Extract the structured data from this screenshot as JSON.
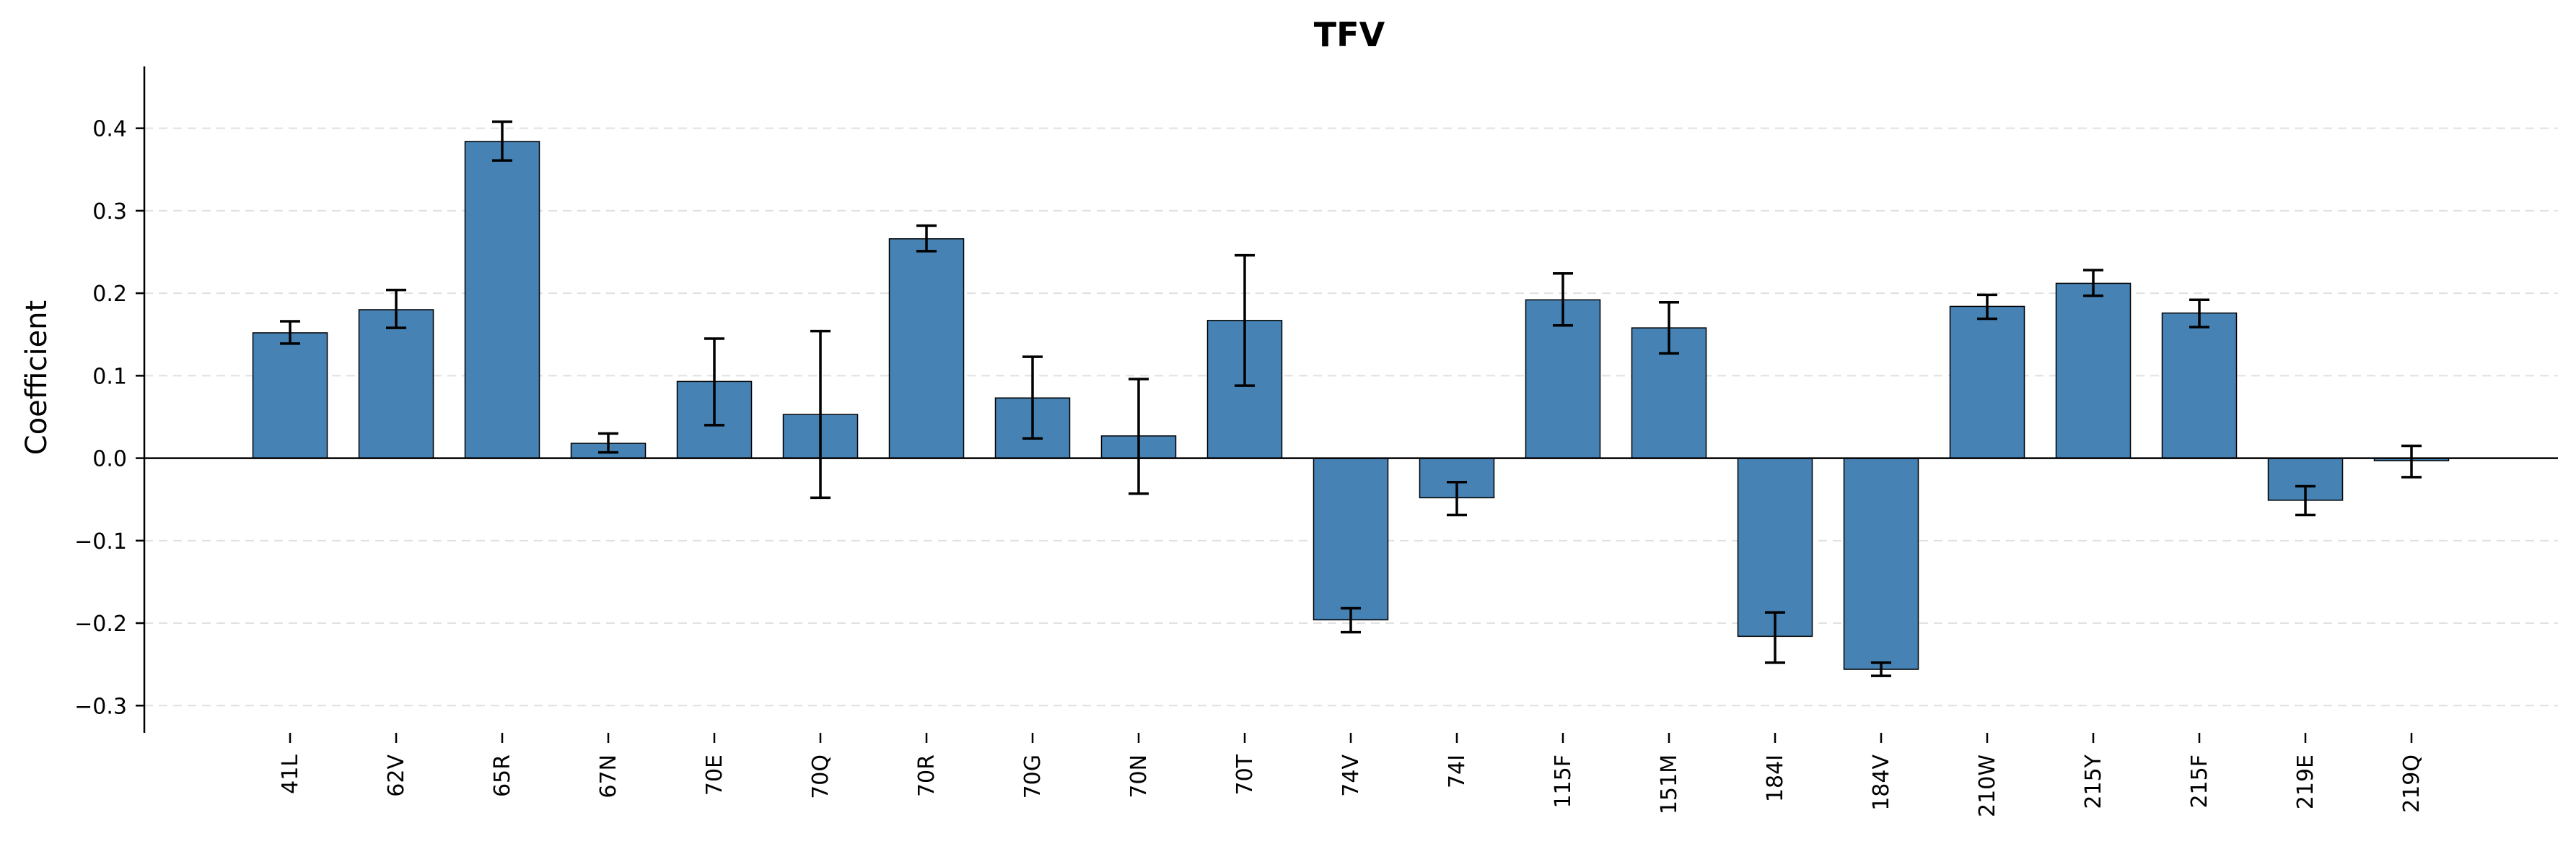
{
  "chart_data": {
    "type": "bar",
    "title": "TFV",
    "xlabel": "",
    "ylabel": "Coefficient",
    "ylim": [
      -0.333,
      0.475
    ],
    "yticks": [
      -0.3,
      -0.2,
      -0.1,
      0.0,
      0.1,
      0.2,
      0.3,
      0.4
    ],
    "ytick_labels": [
      "−0.3",
      "−0.2",
      "−0.1",
      "0.0",
      "0.1",
      "0.2",
      "0.3",
      "0.4"
    ],
    "grid": "horizontal dashed",
    "legend": "none",
    "categories": [
      "41L",
      "62V",
      "65R",
      "67N",
      "70E",
      "70Q",
      "70R",
      "70G",
      "70N",
      "70T",
      "74V",
      "74I",
      "115F",
      "151M",
      "184I",
      "184V",
      "210W",
      "215Y",
      "215F",
      "219E",
      "219Q"
    ],
    "values": [
      0.152,
      0.18,
      0.384,
      0.018,
      0.093,
      0.053,
      0.266,
      0.073,
      0.027,
      0.167,
      -0.196,
      -0.048,
      0.192,
      0.158,
      -0.216,
      -0.256,
      0.184,
      0.212,
      0.176,
      -0.051,
      -0.003
    ],
    "error_low": [
      0.139,
      0.158,
      0.361,
      0.007,
      0.04,
      -0.048,
      0.251,
      0.024,
      -0.043,
      0.088,
      -0.211,
      -0.069,
      0.161,
      0.127,
      -0.248,
      -0.264,
      0.169,
      0.197,
      0.159,
      -0.069,
      -0.023
    ],
    "error_high": [
      0.166,
      0.204,
      0.408,
      0.03,
      0.145,
      0.154,
      0.282,
      0.123,
      0.096,
      0.246,
      -0.182,
      -0.029,
      0.224,
      0.189,
      -0.187,
      -0.248,
      0.198,
      0.228,
      0.192,
      -0.034,
      0.015
    ]
  },
  "colors": {
    "bar_fill": "#4682b4",
    "bar_edge": "#000000",
    "grid": "#e0e0e0",
    "axis": "#000000"
  }
}
